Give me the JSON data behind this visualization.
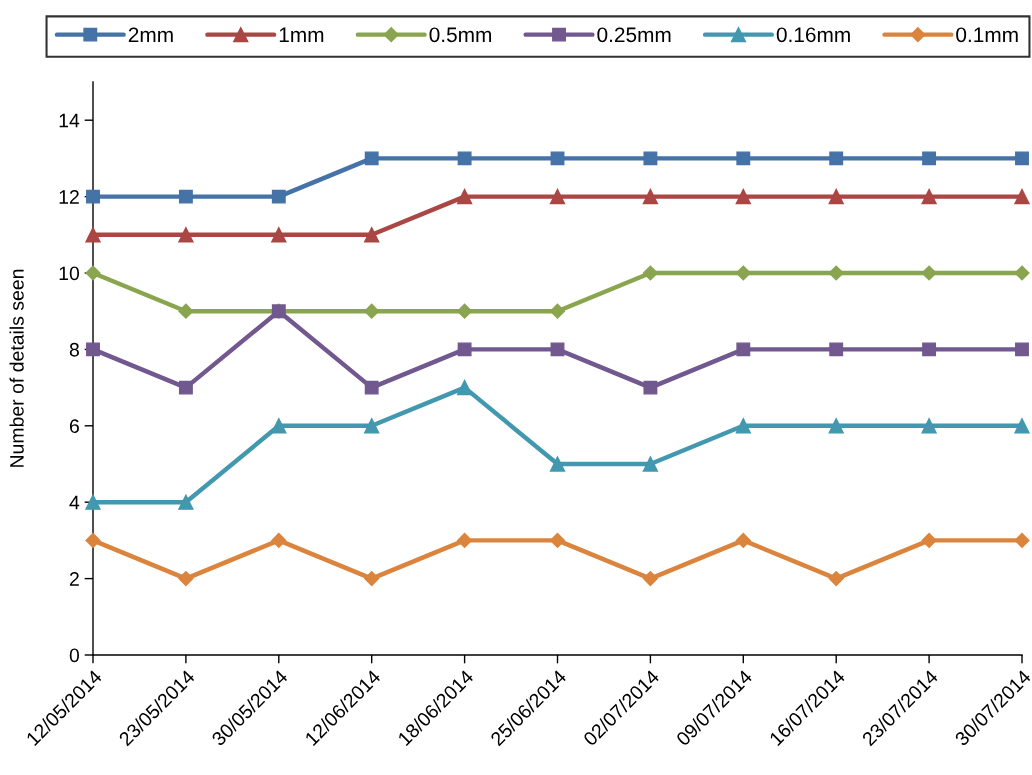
{
  "chart_data": {
    "type": "line",
    "ylabel": "Number of details seen",
    "categories": [
      "12/05/2014",
      "23/05/2014",
      "30/05/2014",
      "12/06/2014",
      "18/06/2014",
      "25/06/2014",
      "02/07/2014",
      "09/07/2014",
      "16/07/2014",
      "23/07/2014",
      "30/07/2014"
    ],
    "series": [
      {
        "name": "2mm",
        "color": "#4572a7",
        "marker": "square",
        "values": [
          12,
          12,
          12,
          13,
          13,
          13,
          13,
          13,
          13,
          13,
          13
        ]
      },
      {
        "name": "1mm",
        "color": "#aa4643",
        "marker": "triangle",
        "values": [
          11,
          11,
          11,
          11,
          12,
          12,
          12,
          12,
          12,
          12,
          12
        ]
      },
      {
        "name": "0.5mm",
        "color": "#89a54e",
        "marker": "diamond",
        "values": [
          10,
          9,
          9,
          9,
          9,
          9,
          10,
          10,
          10,
          10,
          10
        ]
      },
      {
        "name": "0.25mm",
        "color": "#71588f",
        "marker": "square",
        "values": [
          8,
          7,
          9,
          7,
          8,
          8,
          7,
          8,
          8,
          8,
          8
        ]
      },
      {
        "name": "0.16mm",
        "color": "#4198af",
        "marker": "triangle",
        "values": [
          4,
          4,
          6,
          6,
          7,
          5,
          5,
          6,
          6,
          6,
          6
        ]
      },
      {
        "name": "0.1mm",
        "color": "#db843d",
        "marker": "diamond",
        "values": [
          3,
          2,
          3,
          2,
          3,
          3,
          2,
          3,
          2,
          3,
          3
        ]
      }
    ],
    "ylim": [
      0,
      15
    ],
    "yticks": [
      0,
      2,
      4,
      6,
      8,
      10,
      12,
      14
    ],
    "grid": false,
    "legend": "top",
    "line_style": "solid"
  }
}
